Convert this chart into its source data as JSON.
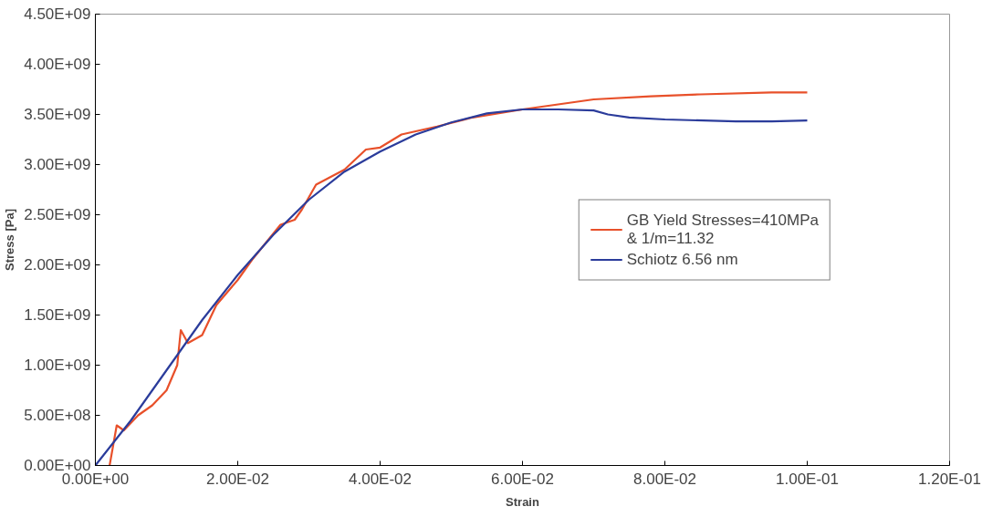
{
  "chart_data": {
    "type": "line",
    "xlabel": "Strain",
    "ylabel": "Stress [Pa]",
    "xlim": [
      0,
      0.12
    ],
    "ylim": [
      0,
      4500000000
    ],
    "xticks": [
      {
        "value": 0,
        "label": "0.00E+00"
      },
      {
        "value": 0.02,
        "label": "2.00E-02"
      },
      {
        "value": 0.04,
        "label": "4.00E-02"
      },
      {
        "value": 0.06,
        "label": "6.00E-02"
      },
      {
        "value": 0.08,
        "label": "8.00E-02"
      },
      {
        "value": 0.1,
        "label": "1.00E-01"
      },
      {
        "value": 0.12,
        "label": "1.20E-01"
      }
    ],
    "yticks": [
      {
        "value": 0,
        "label": "0.00E+00"
      },
      {
        "value": 500000000,
        "label": "5.00E+08"
      },
      {
        "value": 1000000000,
        "label": "1.00E+09"
      },
      {
        "value": 1500000000,
        "label": "1.50E+09"
      },
      {
        "value": 2000000000,
        "label": "2.00E+09"
      },
      {
        "value": 2500000000,
        "label": "2.50E+09"
      },
      {
        "value": 3000000000,
        "label": "3.00E+09"
      },
      {
        "value": 3500000000,
        "label": "3.50E+09"
      },
      {
        "value": 4000000000,
        "label": "4.00E+09"
      },
      {
        "value": 4500000000,
        "label": "4.50E+09"
      }
    ],
    "grid": false,
    "legend": "right",
    "marker": "none",
    "line_style": "solid",
    "series": [
      {
        "name": "GB Yield Stresses=410MPa\n& 1/m=11.32",
        "color": "#e8502a",
        "x": [
          0.002,
          0.003,
          0.004,
          0.006,
          0.008,
          0.01,
          0.0115,
          0.012,
          0.013,
          0.015,
          0.017,
          0.02,
          0.022,
          0.026,
          0.028,
          0.029,
          0.031,
          0.035,
          0.038,
          0.04,
          0.043,
          0.048,
          0.053,
          0.06,
          0.065,
          0.07,
          0.078,
          0.085,
          0.095,
          0.1
        ],
        "values": [
          0,
          400000000,
          350000000,
          500000000,
          600000000,
          750000000,
          1000000000,
          1350000000,
          1220000000,
          1300000000,
          1600000000,
          1850000000,
          2050000000,
          2400000000,
          2450000000,
          2550000000,
          2800000000,
          2950000000,
          3150000000,
          3170000000,
          3300000000,
          3380000000,
          3470000000,
          3550000000,
          3600000000,
          3650000000,
          3680000000,
          3700000000,
          3720000000,
          3720000000
        ]
      },
      {
        "name": "Schiotz 6.56 nm",
        "color": "#2b3c9b",
        "x": [
          0,
          0.005,
          0.01,
          0.015,
          0.02,
          0.025,
          0.03,
          0.035,
          0.04,
          0.045,
          0.05,
          0.055,
          0.06,
          0.065,
          0.07,
          0.072,
          0.075,
          0.08,
          0.09,
          0.095,
          0.1
        ],
        "values": [
          0,
          450000000,
          950000000,
          1450000000,
          1900000000,
          2300000000,
          2650000000,
          2930000000,
          3130000000,
          3300000000,
          3420000000,
          3510000000,
          3550000000,
          3550000000,
          3540000000,
          3500000000,
          3470000000,
          3450000000,
          3430000000,
          3430000000,
          3440000000
        ]
      }
    ]
  }
}
